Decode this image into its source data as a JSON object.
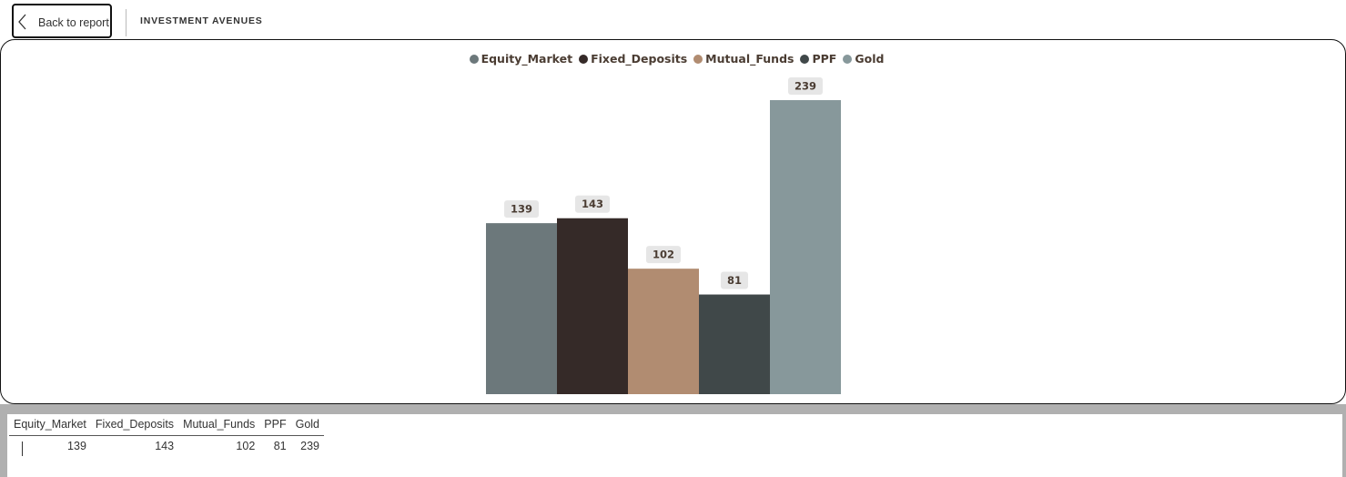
{
  "header": {
    "back_button": "Back to report",
    "title": "INVESTMENT AVENUES"
  },
  "chart_data": {
    "type": "bar",
    "categories": [
      null
    ],
    "series": [
      {
        "name": "Equity_Market",
        "color": "#6c787b",
        "values": [
          139
        ]
      },
      {
        "name": "Fixed_Deposits",
        "color": "#352a28",
        "values": [
          143
        ]
      },
      {
        "name": "Mutual_Funds",
        "color": "#b18c71",
        "values": [
          102
        ]
      },
      {
        "name": "PPF",
        "color": "#404849",
        "values": [
          81
        ]
      },
      {
        "name": "Gold",
        "color": "#87989b",
        "values": [
          239
        ]
      }
    ],
    "legend": "top",
    "grid": false
  },
  "table": {
    "headers": [
      "Equity_Market",
      "Fixed_Deposits",
      "Mutual_Funds",
      "PPF",
      "Gold"
    ],
    "rows": [
      [
        "139",
        "143",
        "102",
        "81",
        "239"
      ]
    ]
  }
}
